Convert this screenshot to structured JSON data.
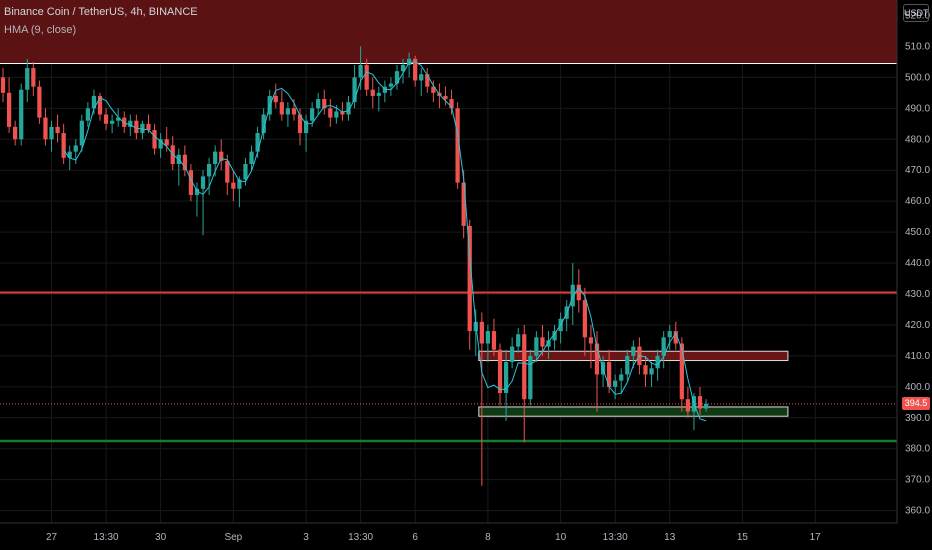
{
  "header": {
    "title": "Binance Coin / TetherUS, 4h, BINANCE",
    "indicator": "HMA (9, close)",
    "currency_badge": "USDT",
    "price_tag": "394.5"
  },
  "colors": {
    "background": "#000000",
    "up": "#26a69a",
    "down": "#ef5350",
    "hma": "#26c6da",
    "resistance_zone": "#5a1212",
    "support_line": "#1b7a2a",
    "resistance_line": "#e53935",
    "grid": "#1a1a1a"
  },
  "chart_data": {
    "type": "candlestick",
    "title": "Binance Coin / TetherUS, 4h, BINANCE",
    "indicator": "HMA (9, close)",
    "y_axis": {
      "unit": "USDT",
      "ticks": [
        360,
        370,
        380,
        390,
        400,
        410,
        420,
        430,
        440,
        450,
        460,
        470,
        480,
        490,
        500,
        510,
        520
      ],
      "tick_labels": [
        "360.0",
        "370.0",
        "380.0",
        "390.0",
        "400.0",
        "410.0",
        "420.0",
        "430.0",
        "440.0",
        "450.0",
        "460.0",
        "470.0",
        "480.0",
        "490.0",
        "500.0",
        "510.0",
        "520.0"
      ],
      "range": [
        356,
        525
      ]
    },
    "x_axis": {
      "range": [
        0,
        148
      ],
      "ticks": [
        {
          "bar": 8,
          "label": "27"
        },
        {
          "bar": 17,
          "label": "13:30"
        },
        {
          "bar": 26,
          "label": "30"
        },
        {
          "bar": 38,
          "label": "Sep"
        },
        {
          "bar": 50,
          "label": "3"
        },
        {
          "bar": 59,
          "label": "13:30"
        },
        {
          "bar": 68,
          "label": "6"
        },
        {
          "bar": 80,
          "label": "8"
        },
        {
          "bar": 92,
          "label": "10"
        },
        {
          "bar": 101,
          "label": "13:30"
        },
        {
          "bar": 110,
          "label": "13"
        },
        {
          "bar": 122,
          "label": "15"
        },
        {
          "bar": 134,
          "label": "17"
        }
      ]
    },
    "last_price": 394.5,
    "horizontal_lines": [
      {
        "name": "resistance-line",
        "price": 430.5
      },
      {
        "name": "support-line",
        "price": 382.5
      },
      {
        "name": "zone-top-line",
        "price": 504.5
      }
    ],
    "zones": [
      {
        "name": "resistance-zone",
        "top": 530,
        "bottom": 504.5,
        "from_bar": 0,
        "to_bar": 148
      },
      {
        "name": "upper-box",
        "top": 411.5,
        "bottom": 408.5,
        "from_bar": 79,
        "to_bar": 129
      },
      {
        "name": "lower-box",
        "top": 393.5,
        "bottom": 390.5,
        "from_bar": 79,
        "to_bar": 129
      }
    ],
    "candles": [
      [
        500,
        503,
        492,
        495
      ],
      [
        495,
        500,
        482,
        484
      ],
      [
        484,
        486,
        478,
        480
      ],
      [
        480,
        498,
        478,
        496
      ],
      [
        496,
        506,
        492,
        503
      ],
      [
        503,
        505,
        494,
        497
      ],
      [
        497,
        499,
        485,
        487
      ],
      [
        487,
        490,
        478,
        480
      ],
      [
        480,
        486,
        476,
        484
      ],
      [
        484,
        488,
        479,
        482
      ],
      [
        482,
        485,
        472,
        474
      ],
      [
        474,
        478,
        470,
        476
      ],
      [
        476,
        480,
        472,
        478
      ],
      [
        478,
        488,
        476,
        486
      ],
      [
        486,
        492,
        484,
        490
      ],
      [
        490,
        496,
        488,
        494
      ],
      [
        494,
        495,
        486,
        488
      ],
      [
        488,
        490,
        483,
        485
      ],
      [
        485,
        488,
        482,
        486
      ],
      [
        486,
        490,
        484,
        487
      ],
      [
        487,
        489,
        482,
        484
      ],
      [
        484,
        488,
        481,
        486
      ],
      [
        486,
        488,
        480,
        482
      ],
      [
        482,
        486,
        480,
        485
      ],
      [
        485,
        488,
        482,
        483
      ],
      [
        483,
        485,
        475,
        477
      ],
      [
        477,
        482,
        474,
        480
      ],
      [
        480,
        484,
        476,
        478
      ],
      [
        478,
        481,
        470,
        472
      ],
      [
        472,
        477,
        465,
        475
      ],
      [
        475,
        478,
        468,
        470
      ],
      [
        470,
        472,
        460,
        462
      ],
      [
        462,
        466,
        455,
        464
      ],
      [
        464,
        470,
        449,
        468
      ],
      [
        468,
        474,
        462,
        472
      ],
      [
        472,
        478,
        468,
        476
      ],
      [
        476,
        480,
        470,
        473
      ],
      [
        473,
        475,
        462,
        466
      ],
      [
        466,
        470,
        460,
        464
      ],
      [
        464,
        468,
        458,
        467
      ],
      [
        467,
        474,
        465,
        472
      ],
      [
        472,
        478,
        470,
        476
      ],
      [
        476,
        484,
        474,
        482
      ],
      [
        482,
        490,
        480,
        488
      ],
      [
        488,
        496,
        486,
        494
      ],
      [
        494,
        498,
        490,
        492
      ],
      [
        492,
        496,
        486,
        488
      ],
      [
        488,
        492,
        484,
        490
      ],
      [
        490,
        493,
        486,
        488
      ],
      [
        488,
        490,
        478,
        482
      ],
      [
        482,
        488,
        476,
        486
      ],
      [
        486,
        492,
        484,
        490
      ],
      [
        490,
        495,
        488,
        493
      ],
      [
        493,
        496,
        488,
        490
      ],
      [
        490,
        493,
        484,
        487
      ],
      [
        487,
        491,
        485,
        489
      ],
      [
        489,
        492,
        486,
        488
      ],
      [
        488,
        494,
        486,
        492
      ],
      [
        492,
        504,
        490,
        500
      ],
      [
        500,
        510,
        496,
        504
      ],
      [
        504,
        506,
        494,
        496
      ],
      [
        496,
        500,
        490,
        494
      ],
      [
        494,
        497,
        489,
        495
      ],
      [
        495,
        499,
        492,
        497
      ],
      [
        497,
        500,
        494,
        498
      ],
      [
        498,
        504,
        496,
        502
      ],
      [
        502,
        506,
        498,
        504
      ],
      [
        504,
        508,
        500,
        506
      ],
      [
        506,
        507,
        497,
        499
      ],
      [
        499,
        503,
        494,
        501
      ],
      [
        501,
        503,
        495,
        497
      ],
      [
        497,
        499,
        492,
        495
      ],
      [
        495,
        498,
        490,
        494
      ],
      [
        494,
        497,
        491,
        493
      ],
      [
        493,
        496,
        488,
        490
      ],
      [
        490,
        492,
        464,
        466
      ],
      [
        466,
        470,
        448,
        452
      ],
      [
        452,
        454,
        412,
        418
      ],
      [
        418,
        425,
        410,
        421
      ],
      [
        421,
        424,
        368,
        414
      ],
      [
        414,
        420,
        408,
        418
      ],
      [
        418,
        422,
        410,
        412
      ],
      [
        412,
        414,
        394,
        398
      ],
      [
        398,
        412,
        389,
        408
      ],
      [
        408,
        416,
        406,
        413
      ],
      [
        413,
        419,
        411,
        417
      ],
      [
        417,
        420,
        382,
        396
      ],
      [
        396,
        412,
        394,
        410
      ],
      [
        410,
        418,
        408,
        416
      ],
      [
        416,
        420,
        410,
        413
      ],
      [
        413,
        418,
        409,
        415
      ],
      [
        415,
        420,
        412,
        418
      ],
      [
        418,
        424,
        414,
        422
      ],
      [
        422,
        428,
        418,
        426
      ],
      [
        426,
        440,
        420,
        433
      ],
      [
        433,
        438,
        424,
        428
      ],
      [
        428,
        432,
        410,
        416
      ],
      [
        416,
        420,
        406,
        414
      ],
      [
        414,
        418,
        392,
        404
      ],
      [
        404,
        410,
        400,
        408
      ],
      [
        408,
        412,
        398,
        400
      ],
      [
        400,
        404,
        396,
        402
      ],
      [
        402,
        406,
        398,
        404
      ],
      [
        404,
        412,
        402,
        410
      ],
      [
        410,
        415,
        406,
        413
      ],
      [
        413,
        416,
        404,
        407
      ],
      [
        407,
        410,
        400,
        404
      ],
      [
        404,
        408,
        400,
        406
      ],
      [
        406,
        412,
        402,
        410
      ],
      [
        410,
        418,
        406,
        416
      ],
      [
        416,
        420,
        412,
        418
      ],
      [
        418,
        421,
        412,
        414
      ],
      [
        414,
        416,
        392,
        396
      ],
      [
        396,
        400,
        390,
        392
      ],
      [
        392,
        398,
        386,
        397
      ],
      [
        397,
        400,
        391,
        393
      ],
      [
        393,
        396,
        392,
        394.5
      ]
    ]
  }
}
